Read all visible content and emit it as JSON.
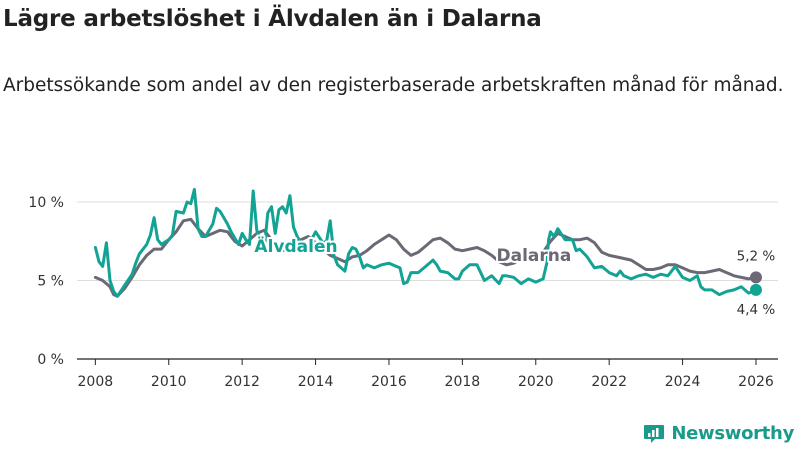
{
  "title": "Lägre arbetslöshet i Älvdalen än i Dalarna",
  "subtitle": "Arbetssökande som andel av den registerbaserade arbetskraften månad för månad.",
  "brand": "Newsworthy",
  "colors": {
    "alvdalen": "#12a394",
    "dalarna": "#6b6975",
    "grid": "#dddddd",
    "brand": "#1a9a8a"
  },
  "chart_data": {
    "type": "line",
    "title": "Lägre arbetslöshet i Älvdalen än i Dalarna",
    "xlabel": "",
    "ylabel": "",
    "xlim": [
      2007.5,
      2026.6
    ],
    "ylim": [
      0,
      10
    ],
    "x_ticks": [
      2008,
      2010,
      2012,
      2014,
      2016,
      2018,
      2020,
      2022,
      2024,
      2026
    ],
    "x_tick_labels": [
      "2008",
      "2010",
      "2012",
      "2014",
      "2016",
      "2018",
      "2020",
      "2022",
      "2024",
      "2026"
    ],
    "y_ticks": [
      0,
      5,
      10
    ],
    "y_tick_labels": [
      "0 %",
      "5 %",
      "10 %"
    ],
    "series": [
      {
        "name": "Dalarna",
        "color": "#6b6975",
        "end_label": "5,2 %",
        "points": [
          [
            2008.0,
            5.2
          ],
          [
            2008.2,
            5.0
          ],
          [
            2008.4,
            4.6
          ],
          [
            2008.5,
            4.1
          ],
          [
            2008.6,
            4.0
          ],
          [
            2008.8,
            4.5
          ],
          [
            2009.0,
            5.2
          ],
          [
            2009.2,
            6.0
          ],
          [
            2009.4,
            6.6
          ],
          [
            2009.6,
            7.0
          ],
          [
            2009.8,
            7.0
          ],
          [
            2010.0,
            7.6
          ],
          [
            2010.2,
            8.1
          ],
          [
            2010.4,
            8.8
          ],
          [
            2010.6,
            8.9
          ],
          [
            2010.8,
            8.3
          ],
          [
            2011.0,
            7.8
          ],
          [
            2011.2,
            8.0
          ],
          [
            2011.4,
            8.2
          ],
          [
            2011.6,
            8.1
          ],
          [
            2011.8,
            7.5
          ],
          [
            2012.0,
            7.2
          ],
          [
            2012.2,
            7.6
          ],
          [
            2012.4,
            8.0
          ],
          [
            2012.6,
            8.2
          ],
          [
            2012.8,
            7.6
          ],
          [
            2013.0,
            7.0
          ],
          [
            2013.2,
            6.9
          ],
          [
            2013.4,
            7.2
          ],
          [
            2013.6,
            7.6
          ],
          [
            2013.8,
            7.8
          ],
          [
            2014.0,
            7.4
          ],
          [
            2014.2,
            7.0
          ],
          [
            2014.4,
            6.6
          ],
          [
            2014.6,
            6.4
          ],
          [
            2014.8,
            6.2
          ],
          [
            2015.0,
            6.5
          ],
          [
            2015.2,
            6.6
          ],
          [
            2015.4,
            6.9
          ],
          [
            2015.6,
            7.3
          ],
          [
            2015.8,
            7.6
          ],
          [
            2016.0,
            7.9
          ],
          [
            2016.2,
            7.6
          ],
          [
            2016.4,
            7.0
          ],
          [
            2016.6,
            6.6
          ],
          [
            2016.8,
            6.8
          ],
          [
            2017.0,
            7.2
          ],
          [
            2017.2,
            7.6
          ],
          [
            2017.4,
            7.7
          ],
          [
            2017.6,
            7.4
          ],
          [
            2017.8,
            7.0
          ],
          [
            2018.0,
            6.9
          ],
          [
            2018.2,
            7.0
          ],
          [
            2018.4,
            7.1
          ],
          [
            2018.6,
            6.9
          ],
          [
            2018.8,
            6.6
          ],
          [
            2019.0,
            6.2
          ],
          [
            2019.2,
            6.0
          ],
          [
            2019.4,
            6.1
          ],
          [
            2019.6,
            6.4
          ],
          [
            2019.8,
            6.5
          ],
          [
            2020.0,
            6.4
          ],
          [
            2020.2,
            6.8
          ],
          [
            2020.4,
            7.5
          ],
          [
            2020.6,
            8.0
          ],
          [
            2020.8,
            7.8
          ],
          [
            2021.0,
            7.6
          ],
          [
            2021.2,
            7.6
          ],
          [
            2021.4,
            7.7
          ],
          [
            2021.6,
            7.4
          ],
          [
            2021.8,
            6.8
          ],
          [
            2022.0,
            6.6
          ],
          [
            2022.2,
            6.5
          ],
          [
            2022.4,
            6.4
          ],
          [
            2022.6,
            6.3
          ],
          [
            2022.8,
            6.0
          ],
          [
            2023.0,
            5.7
          ],
          [
            2023.2,
            5.7
          ],
          [
            2023.4,
            5.8
          ],
          [
            2023.6,
            6.0
          ],
          [
            2023.8,
            6.0
          ],
          [
            2024.0,
            5.8
          ],
          [
            2024.2,
            5.6
          ],
          [
            2024.4,
            5.5
          ],
          [
            2024.6,
            5.5
          ],
          [
            2024.8,
            5.6
          ],
          [
            2025.0,
            5.7
          ],
          [
            2025.2,
            5.5
          ],
          [
            2025.4,
            5.3
          ],
          [
            2025.6,
            5.2
          ],
          [
            2025.8,
            5.1
          ],
          [
            2026.0,
            5.2
          ]
        ]
      },
      {
        "name": "Älvdalen",
        "color": "#12a394",
        "end_label": "4,4 %",
        "points": [
          [
            2008.0,
            7.1
          ],
          [
            2008.1,
            6.2
          ],
          [
            2008.2,
            5.9
          ],
          [
            2008.3,
            7.4
          ],
          [
            2008.4,
            5.0
          ],
          [
            2008.5,
            4.3
          ],
          [
            2008.6,
            4.0
          ],
          [
            2008.8,
            4.7
          ],
          [
            2009.0,
            5.4
          ],
          [
            2009.1,
            6.1
          ],
          [
            2009.2,
            6.7
          ],
          [
            2009.4,
            7.3
          ],
          [
            2009.5,
            7.9
          ],
          [
            2009.6,
            9.0
          ],
          [
            2009.7,
            7.6
          ],
          [
            2009.8,
            7.3
          ],
          [
            2010.0,
            7.6
          ],
          [
            2010.1,
            7.9
          ],
          [
            2010.2,
            9.4
          ],
          [
            2010.4,
            9.3
          ],
          [
            2010.5,
            10.0
          ],
          [
            2010.6,
            9.9
          ],
          [
            2010.7,
            10.8
          ],
          [
            2010.8,
            8.3
          ],
          [
            2010.9,
            7.8
          ],
          [
            2011.0,
            7.8
          ],
          [
            2011.2,
            8.6
          ],
          [
            2011.3,
            9.6
          ],
          [
            2011.4,
            9.4
          ],
          [
            2011.6,
            8.6
          ],
          [
            2011.7,
            8.1
          ],
          [
            2011.8,
            7.7
          ],
          [
            2011.9,
            7.3
          ],
          [
            2012.0,
            8.0
          ],
          [
            2012.1,
            7.6
          ],
          [
            2012.2,
            7.3
          ],
          [
            2012.3,
            10.7
          ],
          [
            2012.4,
            8.2
          ],
          [
            2012.5,
            7.6
          ],
          [
            2012.6,
            7.0
          ],
          [
            2012.7,
            9.3
          ],
          [
            2012.8,
            9.7
          ],
          [
            2012.9,
            8.0
          ],
          [
            2013.0,
            9.5
          ],
          [
            2013.1,
            9.7
          ],
          [
            2013.2,
            9.3
          ],
          [
            2013.3,
            10.4
          ],
          [
            2013.4,
            8.4
          ],
          [
            2013.5,
            7.8
          ],
          [
            2013.6,
            7.4
          ],
          [
            2013.8,
            7.2
          ],
          [
            2014.0,
            8.1
          ],
          [
            2014.2,
            7.4
          ],
          [
            2014.3,
            7.5
          ],
          [
            2014.4,
            8.8
          ],
          [
            2014.5,
            6.6
          ],
          [
            2014.6,
            6.0
          ],
          [
            2014.8,
            5.6
          ],
          [
            2014.9,
            6.7
          ],
          [
            2015.0,
            7.1
          ],
          [
            2015.1,
            7.0
          ],
          [
            2015.2,
            6.5
          ],
          [
            2015.3,
            5.8
          ],
          [
            2015.4,
            6.0
          ],
          [
            2015.6,
            5.8
          ],
          [
            2015.8,
            6.0
          ],
          [
            2016.0,
            6.1
          ],
          [
            2016.2,
            5.9
          ],
          [
            2016.3,
            5.8
          ],
          [
            2016.4,
            4.8
          ],
          [
            2016.5,
            4.9
          ],
          [
            2016.6,
            5.5
          ],
          [
            2016.8,
            5.5
          ],
          [
            2017.0,
            5.9
          ],
          [
            2017.2,
            6.3
          ],
          [
            2017.3,
            6.0
          ],
          [
            2017.4,
            5.6
          ],
          [
            2017.6,
            5.5
          ],
          [
            2017.8,
            5.1
          ],
          [
            2017.9,
            5.1
          ],
          [
            2018.0,
            5.6
          ],
          [
            2018.2,
            6.0
          ],
          [
            2018.4,
            6.0
          ],
          [
            2018.5,
            5.5
          ],
          [
            2018.6,
            5.0
          ],
          [
            2018.8,
            5.3
          ],
          [
            2019.0,
            4.8
          ],
          [
            2019.1,
            5.3
          ],
          [
            2019.2,
            5.3
          ],
          [
            2019.4,
            5.2
          ],
          [
            2019.6,
            4.8
          ],
          [
            2019.8,
            5.1
          ],
          [
            2020.0,
            4.9
          ],
          [
            2020.1,
            5.0
          ],
          [
            2020.2,
            5.1
          ],
          [
            2020.3,
            6.1
          ],
          [
            2020.35,
            7.6
          ],
          [
            2020.4,
            8.1
          ],
          [
            2020.5,
            7.8
          ],
          [
            2020.6,
            8.3
          ],
          [
            2020.8,
            7.6
          ],
          [
            2021.0,
            7.6
          ],
          [
            2021.1,
            6.9
          ],
          [
            2021.2,
            7.0
          ],
          [
            2021.4,
            6.5
          ],
          [
            2021.6,
            5.8
          ],
          [
            2021.8,
            5.9
          ],
          [
            2022.0,
            5.5
          ],
          [
            2022.2,
            5.3
          ],
          [
            2022.3,
            5.6
          ],
          [
            2022.4,
            5.3
          ],
          [
            2022.6,
            5.1
          ],
          [
            2022.8,
            5.3
          ],
          [
            2023.0,
            5.4
          ],
          [
            2023.2,
            5.2
          ],
          [
            2023.4,
            5.4
          ],
          [
            2023.6,
            5.3
          ],
          [
            2023.8,
            5.9
          ],
          [
            2024.0,
            5.2
          ],
          [
            2024.2,
            5.0
          ],
          [
            2024.4,
            5.3
          ],
          [
            2024.5,
            4.6
          ],
          [
            2024.6,
            4.4
          ],
          [
            2024.8,
            4.4
          ],
          [
            2025.0,
            4.1
          ],
          [
            2025.2,
            4.3
          ],
          [
            2025.4,
            4.4
          ],
          [
            2025.6,
            4.6
          ],
          [
            2025.8,
            4.2
          ],
          [
            2026.0,
            4.4
          ]
        ]
      }
    ]
  }
}
